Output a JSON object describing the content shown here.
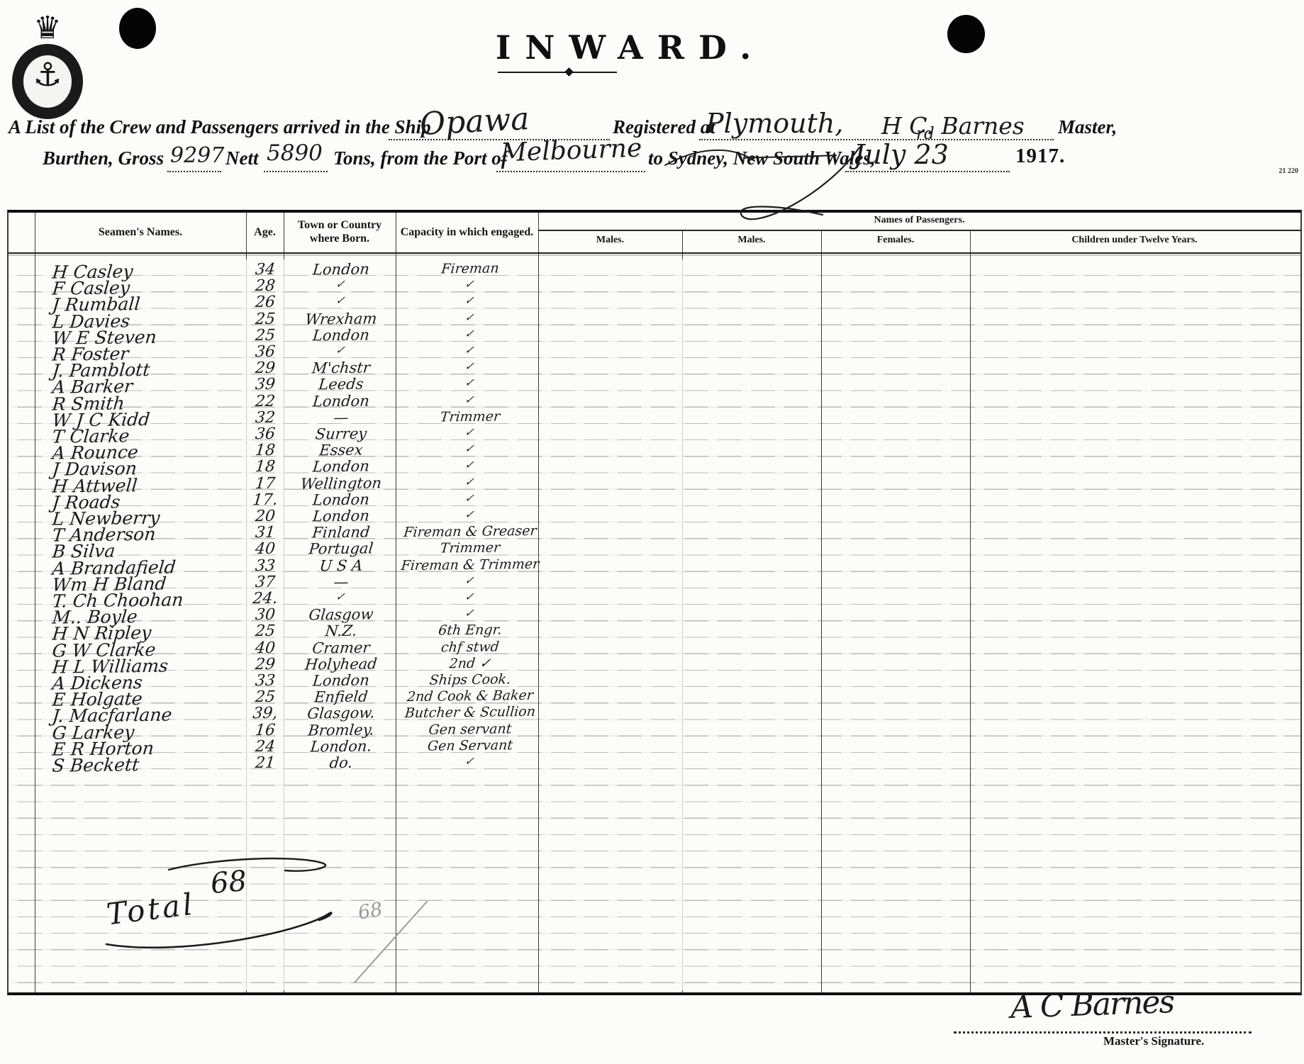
{
  "doc": {
    "title": "INWARD.",
    "form_number": "21 220",
    "colors": {
      "paper": "#fcfcfb",
      "ink": "#171717",
      "pencil": "#999999"
    },
    "icons": {
      "crest": "crown-anchor-crest",
      "punch_hole": "punch-hole"
    },
    "header": {
      "line1_printed1": "A List of the Crew and Passengers arrived in the Ship",
      "ship_name": "Opawa",
      "line1_printed2": "Registered at",
      "registered_at": "Plymouth,",
      "master_name": "H C. Barnes",
      "line1_printed3": "Master,",
      "line2_printed1": "Burthen, Gross",
      "gross_tons": "9297",
      "line2_printed2": "Nett",
      "nett_tons": "5890",
      "line2_printed3": "Tons, from the Port of",
      "port_from": "Melbourne",
      "line2_printed4": "to Sydney, New South Wales,",
      "date": "July 23",
      "date_suffix": "rd",
      "year": "1917."
    },
    "table": {
      "columns": [
        "Seamen's Names.",
        "Age.",
        "Town or Country where Born.",
        "Capacity in which engaged."
      ],
      "passenger_header": "Names of Passengers.",
      "passenger_columns": [
        "Males.",
        "Males.",
        "Females.",
        "Children under Twelve Years."
      ],
      "rows": [
        {
          "name": "H Casley",
          "age": "34",
          "born": "London",
          "capacity": "Fireman"
        },
        {
          "name": "F Casley",
          "age": "28",
          "born": "✓",
          "capacity": "✓"
        },
        {
          "name": "J Rumball",
          "age": "26",
          "born": "✓",
          "capacity": "✓"
        },
        {
          "name": "L Davies",
          "age": "25",
          "born": "Wrexham",
          "capacity": "✓"
        },
        {
          "name": "W E Steven",
          "age": "25",
          "born": "London",
          "capacity": "✓"
        },
        {
          "name": "R Foster",
          "age": "36",
          "born": "✓",
          "capacity": "✓"
        },
        {
          "name": "J. Pamblott",
          "age": "29",
          "born": "M'chstr",
          "capacity": "✓"
        },
        {
          "name": "A Barker",
          "age": "39",
          "born": "Leeds",
          "capacity": "✓"
        },
        {
          "name": "R Smith",
          "age": "22",
          "born": "London",
          "capacity": "✓"
        },
        {
          "name": "W J C Kidd",
          "age": "32",
          "born": "—",
          "capacity": "Trimmer"
        },
        {
          "name": "T Clarke",
          "age": "36",
          "born": "Surrey",
          "capacity": "✓"
        },
        {
          "name": "A Rounce",
          "age": "18",
          "born": "Essex",
          "capacity": "✓"
        },
        {
          "name": "J Davison",
          "age": "18",
          "born": "London",
          "capacity": "✓"
        },
        {
          "name": "H Attwell",
          "age": "17",
          "born": "Wellington",
          "capacity": "✓"
        },
        {
          "name": "J Roads",
          "age": "17.",
          "born": "London",
          "capacity": "✓"
        },
        {
          "name": "L Newberry",
          "age": "20",
          "born": "London",
          "capacity": "✓"
        },
        {
          "name": "T Anderson",
          "age": "31",
          "born": "Finland",
          "capacity": "Fireman & Greaser"
        },
        {
          "name": "B Silva",
          "age": "40",
          "born": "Portugal",
          "capacity": "Trimmer"
        },
        {
          "name": "A Brandafield",
          "age": "33",
          "born": "U S A",
          "capacity": "Fireman & Trimmer"
        },
        {
          "name": "Wm H Bland",
          "age": "37",
          "born": "—",
          "capacity": "✓"
        },
        {
          "name": "T. Ch Choohan",
          "age": "24.",
          "born": "✓",
          "capacity": "✓"
        },
        {
          "name": "M.. Boyle",
          "age": "30",
          "born": "Glasgow",
          "capacity": "✓"
        },
        {
          "name": "H N Ripley",
          "age": "25",
          "born": "N.Z.",
          "capacity": "6th Engr."
        },
        {
          "name": "G W Clarke",
          "age": "40",
          "born": "Cramer",
          "capacity": "chf stwd"
        },
        {
          "name": "H L Williams",
          "age": "29",
          "born": "Holyhead",
          "capacity": "2nd ✓"
        },
        {
          "name": "A Dickens",
          "age": "33",
          "born": "London",
          "capacity": "Ships Cook."
        },
        {
          "name": "E Holgate",
          "age": "25",
          "born": "Enfield",
          "capacity": "2nd Cook & Baker"
        },
        {
          "name": "J. Macfarlane",
          "age": "39,",
          "born": "Glasgow.",
          "capacity": "Butcher & Scullion"
        },
        {
          "name": "G Larkey",
          "age": "16",
          "born": "Bromley.",
          "capacity": "Gen servant"
        },
        {
          "name": "E R Horton",
          "age": "24",
          "born": "London.",
          "capacity": "Gen Servant"
        },
        {
          "name": "S Beckett",
          "age": "21",
          "born": "do.",
          "capacity": "✓"
        }
      ],
      "total_label": "Total",
      "total_value": "68",
      "pencil_note": "68"
    },
    "footer": {
      "signature": "A C Barnes",
      "signature_label": "Master's Signature."
    }
  }
}
